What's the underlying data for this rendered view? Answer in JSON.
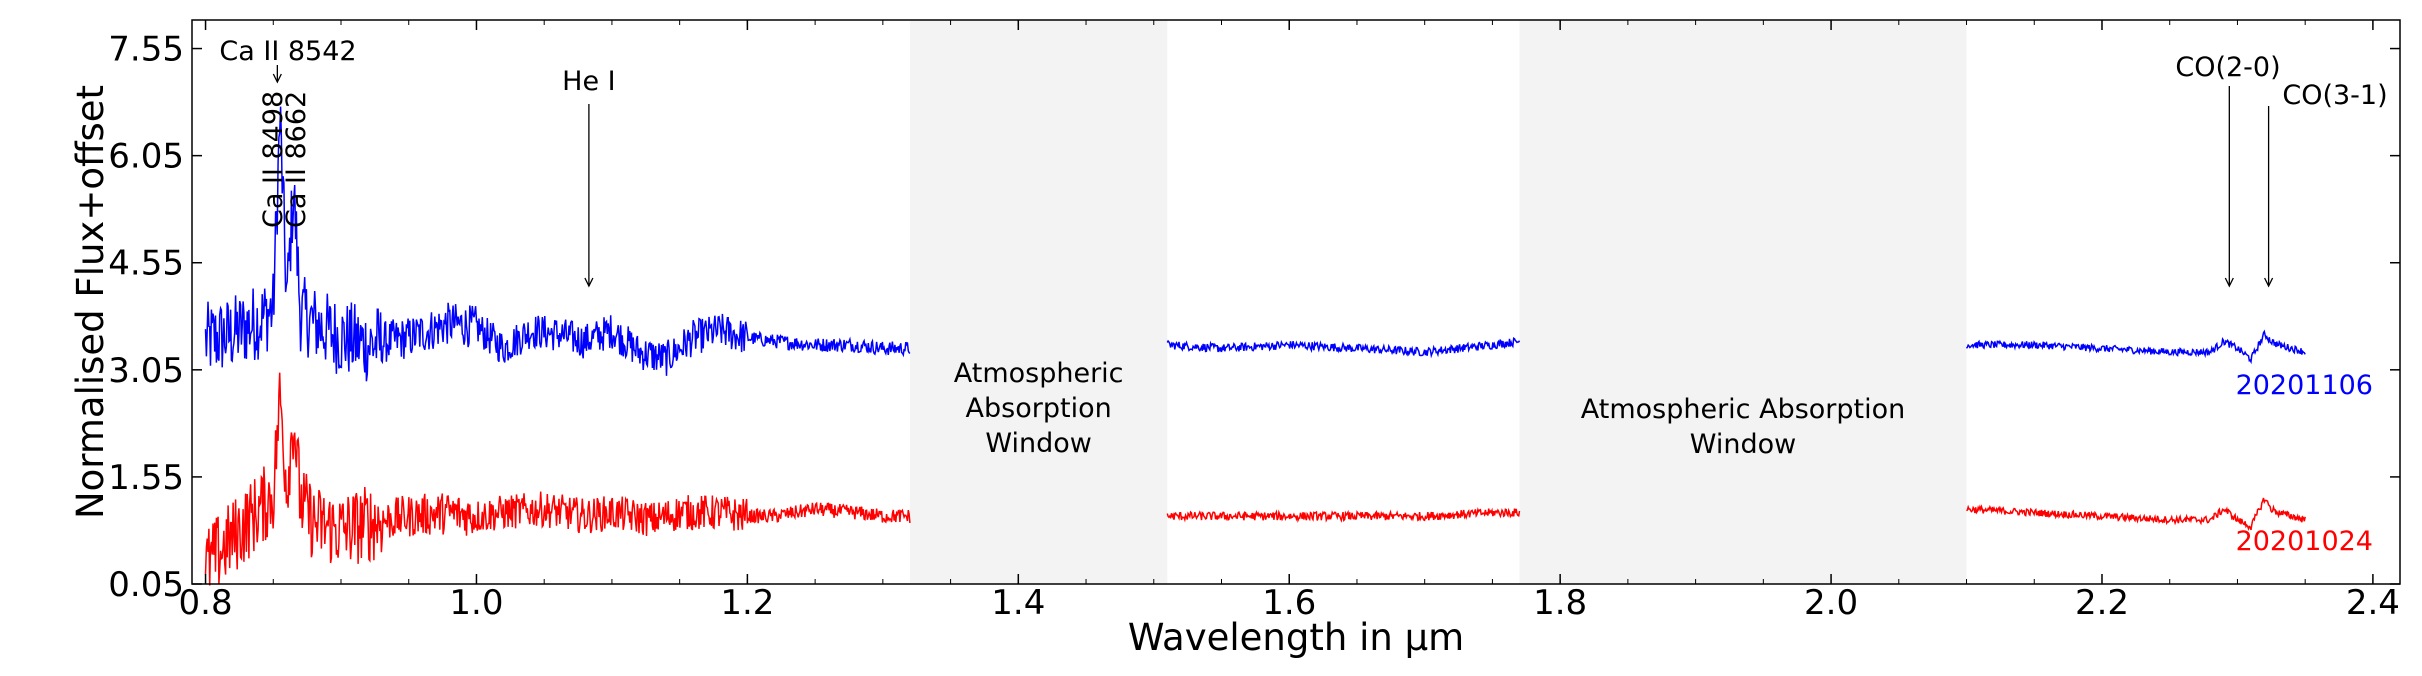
{
  "chart_data": {
    "type": "line",
    "xlabel": "Wavelength in μm",
    "ylabel": "Normalised Flux+offset",
    "xlim": [
      0.79,
      2.42
    ],
    "ylim": [
      0.05,
      7.95
    ],
    "xticks": [
      0.8,
      1.0,
      1.2,
      1.4,
      1.6,
      1.8,
      2.0,
      2.2,
      2.4
    ],
    "xtick_labels": [
      "0.8",
      "1.0",
      "1.2",
      "1.4",
      "1.6",
      "1.8",
      "2.0",
      "2.2",
      "2.4"
    ],
    "yticks": [
      0.05,
      1.55,
      3.05,
      4.55,
      6.05,
      7.55
    ],
    "ytick_labels": [
      "0.05",
      "1.55",
      "3.05",
      "4.55",
      "6.05",
      "7.55"
    ],
    "grid": false,
    "shaded_regions": [
      {
        "x": [
          1.32,
          1.51
        ],
        "label_lines": [
          "Atmospheric",
          "Absorption",
          "Window"
        ]
      },
      {
        "x": [
          1.77,
          2.1
        ],
        "label_lines": [
          "Atmospheric Absorption",
          "Window"
        ]
      }
    ],
    "series": [
      {
        "name": "20201106",
        "color": "#0000ff",
        "segments": [
          {
            "x": [
              0.8,
              0.82,
              0.84,
              0.85,
              0.855,
              0.86,
              0.865,
              0.87,
              0.88,
              0.9,
              0.92,
              0.95,
              0.98,
              1.0,
              1.02,
              1.04,
              1.06,
              1.08,
              1.1,
              1.12,
              1.14,
              1.16,
              1.18,
              1.2,
              1.22,
              1.25,
              1.28,
              1.3,
              1.32
            ],
            "y": [
              3.45,
              3.55,
              3.75,
              3.9,
              6.6,
              4.0,
              5.6,
              3.85,
              3.7,
              3.5,
              3.4,
              3.5,
              3.7,
              3.65,
              3.35,
              3.6,
              3.55,
              3.45,
              3.6,
              3.3,
              3.2,
              3.5,
              3.6,
              3.5,
              3.45,
              3.4,
              3.4,
              3.35,
              3.35
            ]
          },
          {
            "x": [
              1.51,
              1.55,
              1.6,
              1.65,
              1.7,
              1.75,
              1.77
            ],
            "y": [
              3.4,
              3.35,
              3.4,
              3.35,
              3.3,
              3.4,
              3.45
            ]
          },
          {
            "x": [
              2.1,
              2.15,
              2.2,
              2.25,
              2.28,
              2.29,
              2.3,
              2.31,
              2.32,
              2.325,
              2.33,
              2.35
            ],
            "y": [
              3.4,
              3.4,
              3.35,
              3.3,
              3.3,
              3.45,
              3.35,
              3.2,
              3.55,
              3.45,
              3.4,
              3.3
            ]
          }
        ]
      },
      {
        "name": "20201024",
        "color": "#ff0000",
        "segments": [
          {
            "x": [
              0.8,
              0.82,
              0.84,
              0.85,
              0.855,
              0.86,
              0.865,
              0.87,
              0.88,
              0.9,
              0.92,
              0.95,
              0.98,
              1.0,
              1.02,
              1.05,
              1.08,
              1.1,
              1.13,
              1.15,
              1.18,
              1.2,
              1.22,
              1.25,
              1.28,
              1.3,
              1.32
            ],
            "y": [
              0.3,
              0.7,
              1.1,
              1.3,
              2.7,
              1.4,
              2.4,
              1.2,
              0.9,
              0.8,
              0.9,
              1.0,
              1.05,
              1.0,
              1.05,
              1.1,
              1.0,
              1.05,
              0.95,
              1.05,
              1.05,
              1.0,
              1.0,
              1.1,
              1.05,
              1.0,
              1.0
            ]
          },
          {
            "x": [
              1.51,
              1.55,
              1.6,
              1.65,
              1.7,
              1.75,
              1.77
            ],
            "y": [
              1.0,
              1.0,
              1.0,
              1.0,
              1.0,
              1.05,
              1.05
            ]
          },
          {
            "x": [
              2.1,
              2.15,
              2.2,
              2.25,
              2.28,
              2.29,
              2.3,
              2.31,
              2.32,
              2.325,
              2.33,
              2.35
            ],
            "y": [
              1.1,
              1.05,
              1.0,
              0.95,
              0.95,
              1.1,
              0.95,
              0.85,
              1.25,
              1.1,
              1.05,
              0.95
            ]
          }
        ]
      }
    ],
    "annotations": [
      {
        "text": "Ca II 8542",
        "x": 0.853,
        "rotated": false,
        "arrow": true
      },
      {
        "text": "Ca II 8498",
        "x": 0.849,
        "rotated": true,
        "arrow": false
      },
      {
        "text": "Ca II 8662",
        "x": 0.866,
        "rotated": true,
        "arrow": false
      },
      {
        "text": "He I",
        "x": 1.083,
        "rotated": false,
        "arrow": true
      },
      {
        "text": "CO(2-0)",
        "x": 2.294,
        "rotated": false,
        "arrow": true
      },
      {
        "text": "CO(3-1)",
        "x": 2.323,
        "rotated": false,
        "arrow": true
      }
    ]
  }
}
